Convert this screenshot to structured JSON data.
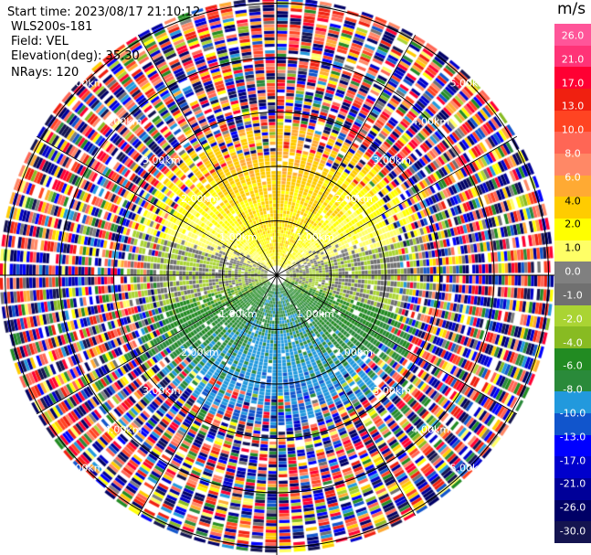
{
  "header": {
    "start_time": "Start time: 2023/08/17 21:10:12",
    "instrument": "WLS200s-181",
    "field": "Field: VEL",
    "elevation": "Elevation(deg): 35.30",
    "nrays": "NRays: 120"
  },
  "colorbar": {
    "unit": "m/s",
    "ticks": [
      "26.0",
      "21.0",
      "17.0",
      "13.0",
      "10.0",
      "8.0",
      "6.0",
      "4.0",
      "2.0",
      "1.0",
      "0.0",
      "-1.0",
      "-2.0",
      "-4.0",
      "-6.0",
      "-8.0",
      "-10.0",
      "-13.0",
      "-17.0",
      "-21.0",
      "-26.0",
      "-30.0"
    ],
    "colors": [
      "#ff5599",
      "#ff3377",
      "#ff0033",
      "#f02010",
      "#ff4422",
      "#ff6655",
      "#ff8866",
      "#ffaa33",
      "#ffcc00",
      "#ffff00",
      "#ffff66",
      "#808080",
      "#707070",
      "#aad433",
      "#88bb22",
      "#228b22",
      "#2a8a3a",
      "#2299dd",
      "#1155cc",
      "#0000ff",
      "#0000cc",
      "#000099",
      "#000066",
      "#141450"
    ]
  },
  "chart_data": {
    "type": "heatmap",
    "projection": "polar-ppi",
    "field": "VEL",
    "units": "m/s",
    "nrays": 120,
    "ring_labels": [
      "1.00km",
      "2.00km",
      "3.00km",
      "4.00km",
      "5.00km"
    ],
    "range_rings_km": [
      1,
      2,
      3,
      4,
      5
    ],
    "max_range_km": 5.1,
    "color_scale": {
      "bounds": [
        -30,
        -26,
        -21,
        -17,
        -13,
        -10,
        -8,
        -6,
        -4,
        -2,
        -1,
        0,
        1,
        2,
        4,
        6,
        8,
        10,
        13,
        17,
        21,
        26,
        30
      ],
      "colors": [
        "#141450",
        "#000066",
        "#000099",
        "#0000cc",
        "#0000ff",
        "#1155cc",
        "#2299dd",
        "#2a8a3a",
        "#228b22",
        "#88bb22",
        "#aad433",
        "#707070",
        "#808080",
        "#ffff66",
        "#ffff00",
        "#ffcc00",
        "#ffaa33",
        "#ff8866",
        "#ff6655",
        "#ff4422",
        "#f02010",
        "#ff0033",
        "#ff3377",
        "#ff5599"
      ]
    },
    "coherent_region_km": 2.7,
    "pattern": "positive (toward north, yellow/orange 2-8 m/s) in northern half, negative (green/blue -2 to -10 m/s) in southern half, near-zero grey along east-west axis; noisy random values beyond ~2.7 km",
    "grid": true
  }
}
